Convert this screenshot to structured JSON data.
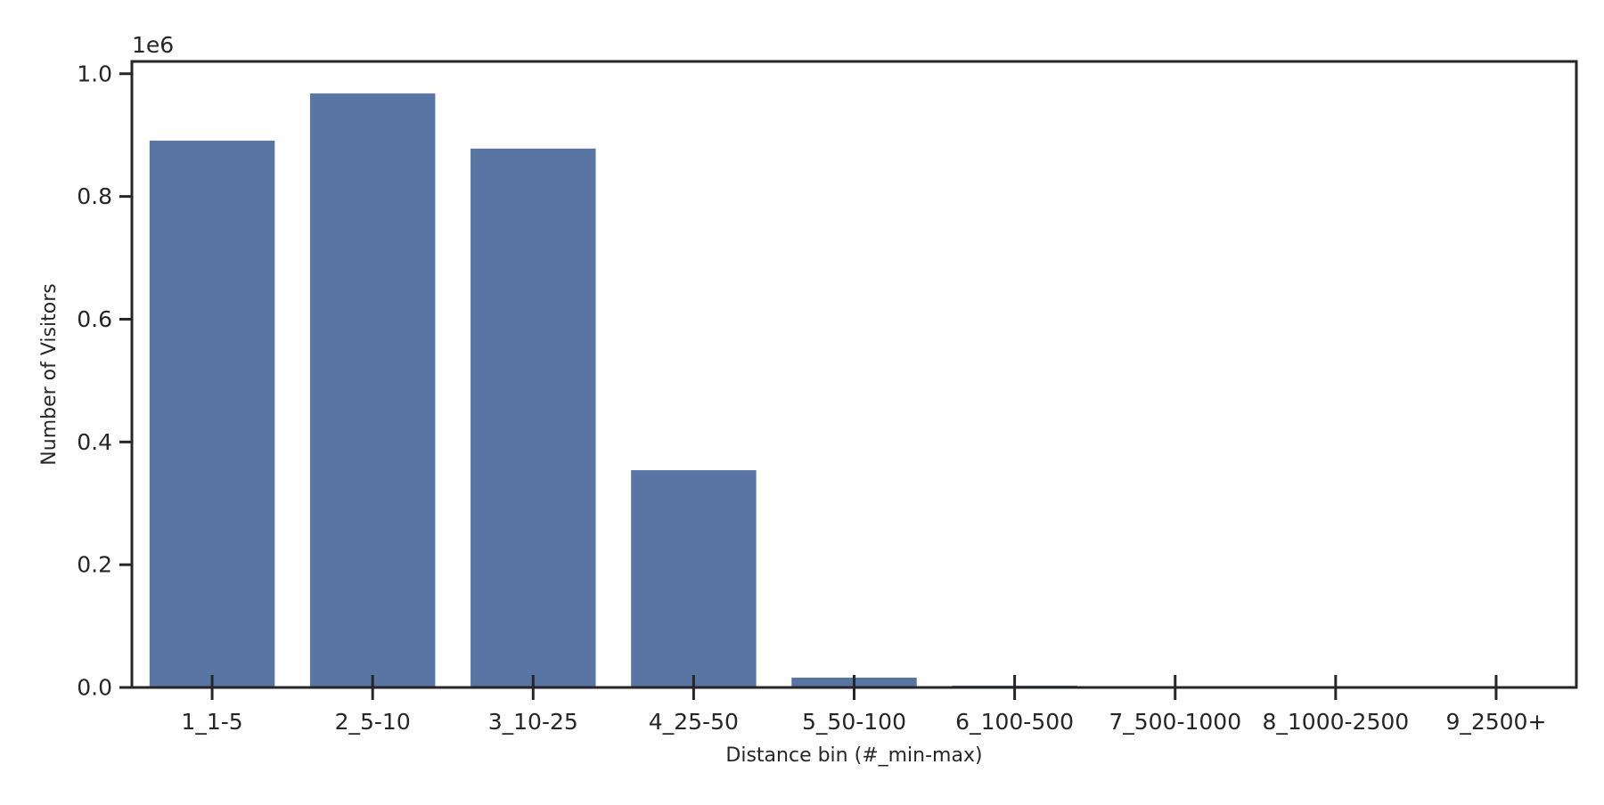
{
  "chart_data": {
    "type": "bar",
    "categories": [
      "1_1-5",
      "2_5-10",
      "3_10-25",
      "4_25-50",
      "5_50-100",
      "6_100-500",
      "7_500-1000",
      "8_1000-2500",
      "9_2500+"
    ],
    "series": [
      {
        "values": [
          891000,
          968000,
          878000,
          354000,
          16000,
          3000,
          500,
          200,
          100
        ]
      }
    ],
    "title": "",
    "xlabel": "Distance bin (#_min-max)",
    "ylabel": "Number of Visitors",
    "ylim": [
      0,
      1020000
    ],
    "y_scale_factor": 1000000,
    "y_offset_label": "1e6",
    "yticks": [
      0,
      200000,
      400000,
      600000,
      800000,
      1000000
    ],
    "ytick_labels": [
      "0.0",
      "0.2",
      "0.4",
      "0.6",
      "0.8",
      "1.0"
    ],
    "grid": false,
    "legend": "none",
    "colors": {
      "bar": "#5975a4",
      "axis": "#262626",
      "text": "#262626",
      "background": "#ffffff"
    }
  }
}
